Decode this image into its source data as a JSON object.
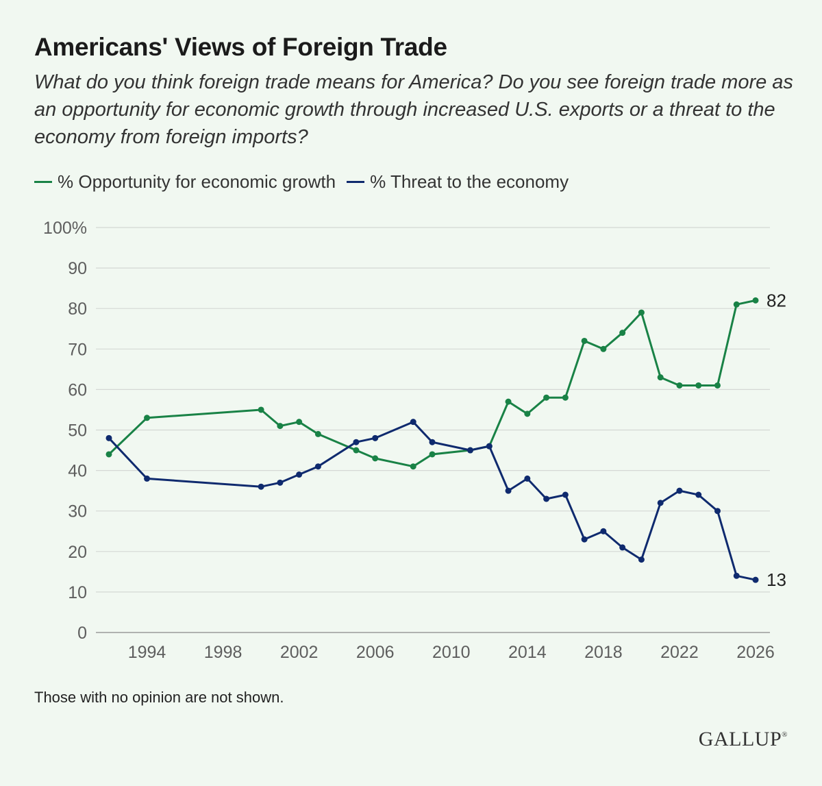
{
  "colors": {
    "opportunity": "#198246",
    "threat": "#0f2a6e",
    "grid": "#d4d8d4",
    "background": "#f1f8f1"
  },
  "footer": {
    "note": "Those with no opinion are not shown.",
    "logo": "GALLUP",
    "logo_mark": "®"
  },
  "chart_data": {
    "type": "line",
    "title": "Americans' Views of Foreign Trade",
    "subtitle": "What do you think foreign trade means for America? Do you see foreign trade more as an opportunity for economic growth through increased U.S. exports or a threat to the economy from foreign imports?",
    "xlabel": "",
    "ylabel": "",
    "xlim": [
      1992,
      2026
    ],
    "ylim": [
      0,
      100
    ],
    "x_ticks": [
      1994,
      1998,
      2002,
      2006,
      2010,
      2014,
      2018,
      2022,
      2026
    ],
    "y_ticks": [
      {
        "value": 0,
        "label": "0"
      },
      {
        "value": 10,
        "label": "10"
      },
      {
        "value": 20,
        "label": "20"
      },
      {
        "value": 30,
        "label": "30"
      },
      {
        "value": 40,
        "label": "40"
      },
      {
        "value": 50,
        "label": "50"
      },
      {
        "value": 60,
        "label": "60"
      },
      {
        "value": 70,
        "label": "70"
      },
      {
        "value": 80,
        "label": "80"
      },
      {
        "value": 90,
        "label": "90"
      },
      {
        "value": 100,
        "label": "100%"
      }
    ],
    "grid": true,
    "legend_position": "top-left",
    "series": [
      {
        "name": "% Opportunity for economic growth",
        "key": "opportunity",
        "end_label": "82",
        "points": [
          [
            1992,
            44
          ],
          [
            1994,
            53
          ],
          [
            2000,
            55
          ],
          [
            2001,
            51
          ],
          [
            2002,
            52
          ],
          [
            2003,
            49
          ],
          [
            2005,
            45
          ],
          [
            2006,
            43
          ],
          [
            2008,
            41
          ],
          [
            2009,
            44
          ],
          [
            2011,
            45
          ],
          [
            2012,
            46
          ],
          [
            2013,
            57
          ],
          [
            2014,
            54
          ],
          [
            2015,
            58
          ],
          [
            2016,
            58
          ],
          [
            2017,
            72
          ],
          [
            2018,
            70
          ],
          [
            2019,
            74
          ],
          [
            2020,
            79
          ],
          [
            2021,
            63
          ],
          [
            2022,
            61
          ],
          [
            2023,
            61
          ],
          [
            2024,
            61
          ],
          [
            2025,
            81
          ],
          [
            2026,
            82
          ]
        ]
      },
      {
        "name": "% Threat to the economy",
        "key": "threat",
        "end_label": "13",
        "points": [
          [
            1992,
            48
          ],
          [
            1994,
            38
          ],
          [
            2000,
            36
          ],
          [
            2001,
            37
          ],
          [
            2002,
            39
          ],
          [
            2003,
            41
          ],
          [
            2005,
            47
          ],
          [
            2006,
            48
          ],
          [
            2008,
            52
          ],
          [
            2009,
            47
          ],
          [
            2011,
            45
          ],
          [
            2012,
            46
          ],
          [
            2013,
            35
          ],
          [
            2014,
            38
          ],
          [
            2015,
            33
          ],
          [
            2016,
            34
          ],
          [
            2017,
            23
          ],
          [
            2018,
            25
          ],
          [
            2019,
            21
          ],
          [
            2020,
            18
          ],
          [
            2021,
            32
          ],
          [
            2022,
            35
          ],
          [
            2023,
            34
          ],
          [
            2024,
            30
          ],
          [
            2025,
            14
          ],
          [
            2026,
            13
          ]
        ]
      }
    ]
  }
}
